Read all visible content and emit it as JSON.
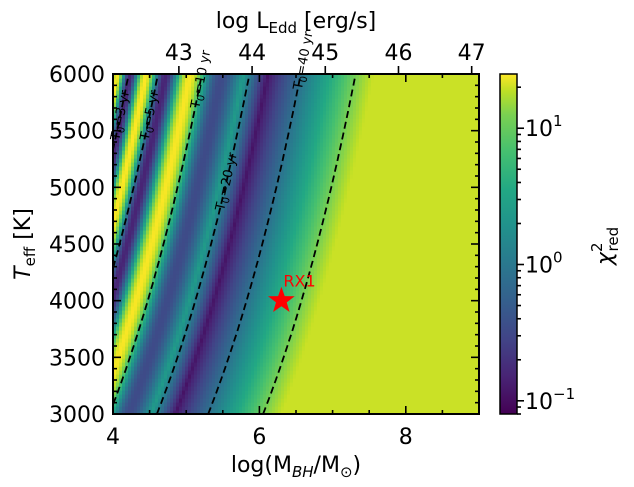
{
  "chart_data": {
    "type": "heatmap",
    "xlabel_main": "log(M",
    "xlabel_sub": "BH",
    "xlabel_mid": "/M",
    "xlabel_sub2": "⊙",
    "xlabel_end": ")",
    "ylabel_main": "T",
    "ylabel_sub": "eff",
    "ylabel_end": " [K]",
    "top_label_main": "log L",
    "top_label_sub": "Edd",
    "top_label_end": " [erg/s]",
    "xlim": [
      4,
      9
    ],
    "ylim": [
      3000,
      6000
    ],
    "x_ticks": [
      {
        "value": 4,
        "label": "4"
      },
      {
        "value": 6,
        "label": "6"
      },
      {
        "value": 8,
        "label": "8"
      }
    ],
    "y_ticks": [
      {
        "value": 3000,
        "label": "3000"
      },
      {
        "value": 3500,
        "label": "3500"
      },
      {
        "value": 4000,
        "label": "4000"
      },
      {
        "value": 4500,
        "label": "4500"
      },
      {
        "value": 5000,
        "label": "5000"
      },
      {
        "value": 5500,
        "label": "5500"
      },
      {
        "value": 6000,
        "label": "6000"
      }
    ],
    "top_ticks": [
      {
        "value": 43,
        "label": "43"
      },
      {
        "value": 44,
        "label": "44"
      },
      {
        "value": 45,
        "label": "45"
      },
      {
        "value": 46,
        "label": "46"
      },
      {
        "value": 47,
        "label": "47"
      }
    ],
    "top_axis_map": {
      "x_at_logL_43": 4.9,
      "x_per_dex": 1.0
    },
    "colorbar": {
      "label_main": "χ",
      "label_sup": "2",
      "label_sub": "red",
      "scale": "log",
      "range": [
        0.08,
        25
      ],
      "ticks": [
        {
          "value": 0.1,
          "base": "10",
          "exp": "−1"
        },
        {
          "value": 1,
          "base": "10",
          "exp": "0"
        },
        {
          "value": 10,
          "base": "10",
          "exp": "1"
        }
      ]
    },
    "contours": [
      {
        "label_pre": "T",
        "label_sub": "0",
        "label_post": "=3 yr",
        "period_yr": 3
      },
      {
        "label_pre": "T",
        "label_sub": "0",
        "label_post": "=5 yr",
        "period_yr": 5
      },
      {
        "label_pre": "T",
        "label_sub": "0",
        "label_post": "=10 yr",
        "period_yr": 10
      },
      {
        "label_pre": "T",
        "label_sub": "0",
        "label_post": "=20 yr",
        "period_yr": 20
      },
      {
        "label_pre": "T",
        "label_sub": "0",
        "label_post": "=40 yr",
        "period_yr": 40
      },
      {
        "label_pre": "T",
        "label_sub": "0",
        "label_post": "=80 yr",
        "period_yr": 80
      }
    ],
    "marker": {
      "label": "RX1",
      "x": 6.3,
      "y": 4000,
      "color": "#ff0000"
    },
    "colormap": "viridis"
  }
}
